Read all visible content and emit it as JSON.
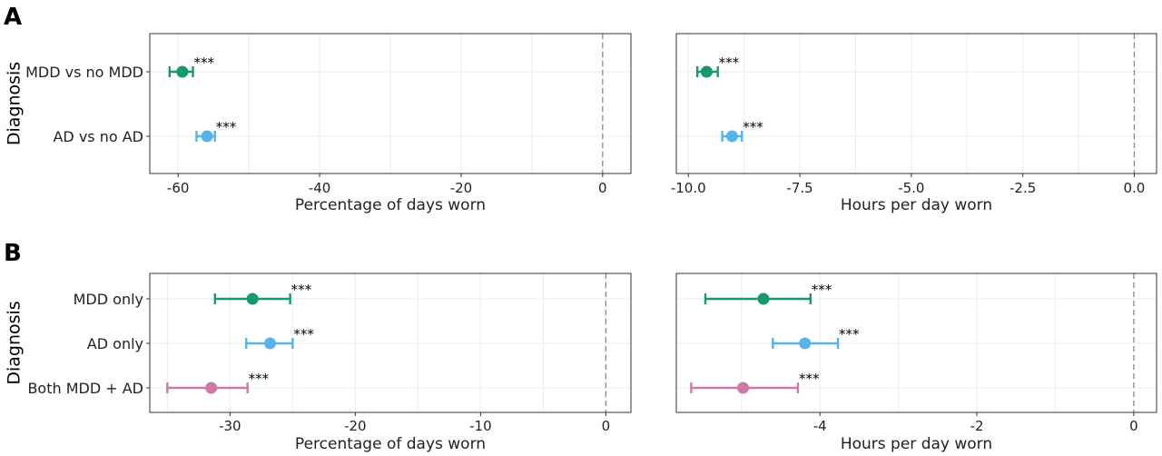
{
  "panel_letters": [
    "A",
    "B"
  ],
  "colors": {
    "MDD": "#16996f",
    "AD": "#56b4e9",
    "Both": "#cc79a7"
  },
  "chart_data": [
    {
      "type": "forest",
      "panel": "A",
      "ylabel": "Diagnosis",
      "xlabel": "Percentage of days worn",
      "xlim": [
        -64,
        4
      ],
      "xticks": [
        -60,
        -40,
        -20,
        0
      ],
      "xtick_labels": [
        "-60",
        "-40",
        "-20",
        "0"
      ],
      "grid": true,
      "categories": [
        "MDD vs no MDD",
        "AD vs no AD"
      ],
      "points": [
        {
          "label": "MDD vs no MDD",
          "estimate": -59.4,
          "lower": -61.2,
          "upper": -57.9,
          "sig": "***",
          "color": "#16996f"
        },
        {
          "label": "AD vs no AD",
          "estimate": -55.9,
          "lower": -57.4,
          "upper": -54.8,
          "sig": "***",
          "color": "#56b4e9"
        }
      ]
    },
    {
      "type": "forest",
      "panel": "A",
      "ylabel": "",
      "xlabel": "Hours per day worn",
      "xlim": [
        -10.27,
        0.5
      ],
      "xticks": [
        -10,
        -7.5,
        -5,
        -2.5,
        0
      ],
      "xtick_labels": [
        "-10.0",
        "-7.5",
        "-5.0",
        "-2.5",
        "0.0"
      ],
      "grid": true,
      "categories": [
        "MDD vs no MDD",
        "AD vs no AD"
      ],
      "points": [
        {
          "label": "MDD vs no MDD",
          "estimate": -9.59,
          "lower": -9.8,
          "upper": -9.34,
          "sig": "***",
          "color": "#16996f"
        },
        {
          "label": "AD vs no AD",
          "estimate": -9.02,
          "lower": -9.24,
          "upper": -8.8,
          "sig": "***",
          "color": "#56b4e9"
        }
      ]
    },
    {
      "type": "forest",
      "panel": "B",
      "ylabel": "Diagnosis",
      "xlabel": "Percentage of days worn",
      "xlim": [
        -36.4,
        2
      ],
      "xticks": [
        -30,
        -20,
        -10,
        0
      ],
      "xtick_labels": [
        "-30",
        "-20",
        "-10",
        "0"
      ],
      "grid": true,
      "categories": [
        "MDD only",
        "AD only",
        "Both MDD + AD"
      ],
      "points": [
        {
          "label": "MDD only",
          "estimate": -28.2,
          "lower": -31.2,
          "upper": -25.2,
          "sig": "***",
          "color": "#16996f"
        },
        {
          "label": "AD only",
          "estimate": -26.8,
          "lower": -28.7,
          "upper": -25.0,
          "sig": "***",
          "color": "#56b4e9"
        },
        {
          "label": "Both MDD + AD",
          "estimate": -31.5,
          "lower": -35.0,
          "upper": -28.6,
          "sig": "***",
          "color": "#cc79a7"
        }
      ]
    },
    {
      "type": "forest",
      "panel": "B",
      "ylabel": "",
      "xlabel": "Hours per day worn",
      "xlim": [
        -5.83,
        0.29
      ],
      "xticks": [
        -4,
        -2,
        0
      ],
      "xtick_labels": [
        "-4",
        "-2",
        "0"
      ],
      "grid": true,
      "categories": [
        "MDD only",
        "AD only",
        "Both MDD + AD"
      ],
      "points": [
        {
          "label": "MDD only",
          "estimate": -4.72,
          "lower": -5.46,
          "upper": -4.12,
          "sig": "***",
          "color": "#16996f"
        },
        {
          "label": "AD only",
          "estimate": -4.19,
          "lower": -4.6,
          "upper": -3.77,
          "sig": "***",
          "color": "#56b4e9"
        },
        {
          "label": "Both MDD + AD",
          "estimate": -4.98,
          "lower": -5.64,
          "upper": -4.28,
          "sig": "***",
          "color": "#cc79a7"
        }
      ]
    }
  ]
}
